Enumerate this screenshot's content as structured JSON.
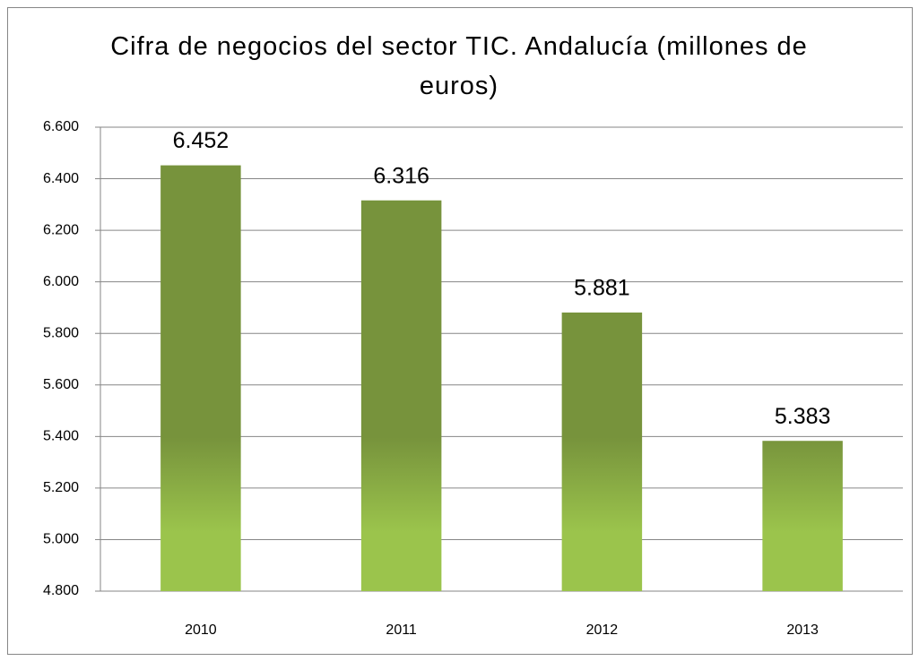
{
  "chart_data": {
    "type": "bar",
    "title": "Cifra de negocios del sector TIC. Andalucía (millones de euros)",
    "categories": [
      "2010",
      "2011",
      "2012",
      "2013"
    ],
    "values": [
      6452,
      6316,
      5881,
      5383
    ],
    "value_labels": [
      "6.452",
      "6.316",
      "5.881",
      "5.383"
    ],
    "color": "#77933c",
    "ylim": [
      4800,
      6600
    ],
    "yticks": [
      {
        "value": 4800,
        "label": "4.800"
      },
      {
        "value": 5000,
        "label": "5.000"
      },
      {
        "value": 5200,
        "label": "5.200"
      },
      {
        "value": 5400,
        "label": "5.400"
      },
      {
        "value": 5600,
        "label": "5.600"
      },
      {
        "value": 5800,
        "label": "5.800"
      },
      {
        "value": 6000,
        "label": "6.000"
      },
      {
        "value": 6200,
        "label": "6.200"
      },
      {
        "value": 6400,
        "label": "6.400"
      },
      {
        "value": 6600,
        "label": "6.600"
      }
    ],
    "grid": true
  }
}
